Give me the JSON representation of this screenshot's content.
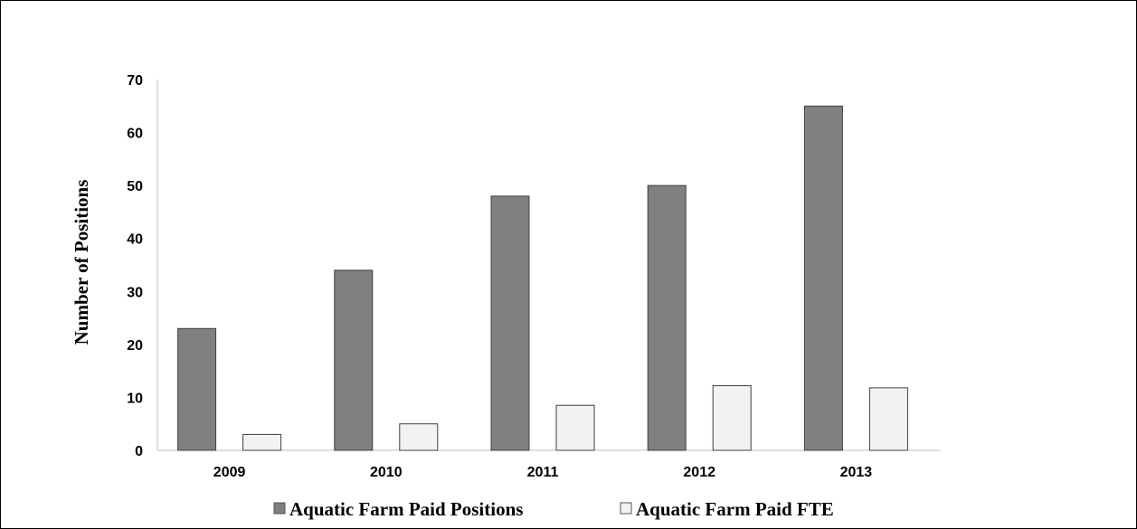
{
  "chart_data": {
    "type": "bar",
    "categories": [
      "2009",
      "2010",
      "2011",
      "2012",
      "2013"
    ],
    "series": [
      {
        "name": "Aquatic Farm Paid Positions",
        "values": [
          23,
          34,
          48,
          50,
          65
        ],
        "color": "#808080"
      },
      {
        "name": "Aquatic Farm Paid FTE",
        "values": [
          3,
          5,
          8.5,
          12.2,
          11.8
        ],
        "color": "#f2f2f2"
      }
    ],
    "ylabel": "Number of Positions",
    "xlabel": "",
    "ylim": [
      0,
      70
    ],
    "yticks": [
      "0",
      "10",
      "20",
      "30",
      "40",
      "50",
      "60",
      "70"
    ],
    "grid": false,
    "legend_position": "bottom"
  }
}
